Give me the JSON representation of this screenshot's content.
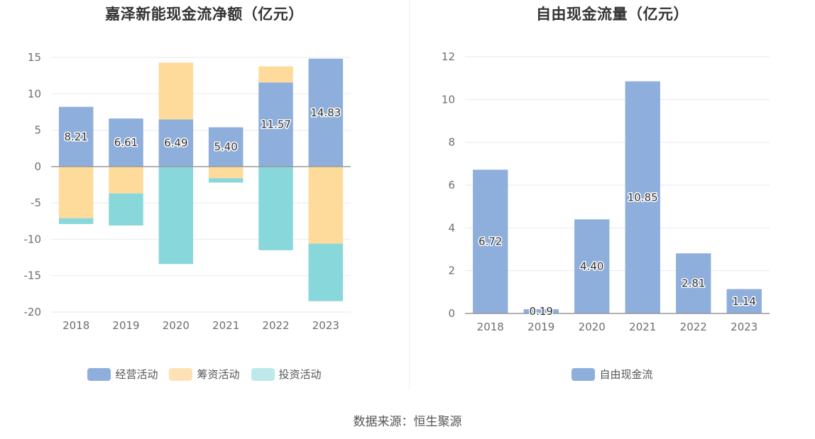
{
  "chart_data": [
    {
      "type": "bar",
      "stacked": true,
      "title": "嘉泽新能现金流净额（亿元）",
      "categories": [
        "2018",
        "2019",
        "2020",
        "2021",
        "2022",
        "2023"
      ],
      "series": [
        {
          "name": "经营活动",
          "color": "#8eaedc",
          "values": [
            8.21,
            6.61,
            6.49,
            5.4,
            11.57,
            14.83
          ],
          "labels": [
            "8.21",
            "6.61",
            "6.49",
            "5.40",
            "11.57",
            "14.83"
          ]
        },
        {
          "name": "筹资活动",
          "color": "#fedb9b",
          "values": [
            -7.1,
            -3.7,
            7.8,
            -1.6,
            2.2,
            -10.6
          ]
        },
        {
          "name": "投资活动",
          "color": "#88d7db",
          "values": [
            -0.8,
            -4.4,
            -13.4,
            -0.6,
            -11.5,
            -7.9
          ]
        }
      ],
      "yticks": [
        "15",
        "10",
        "5",
        "0",
        "-5",
        "-10",
        "-15",
        "-20"
      ],
      "ylim": [
        -20,
        15
      ],
      "grid": true,
      "legend_position": "bottom"
    },
    {
      "type": "bar",
      "title": "自由现金流量（亿元）",
      "categories": [
        "2018",
        "2019",
        "2020",
        "2021",
        "2022",
        "2023"
      ],
      "series": [
        {
          "name": "自由现金流",
          "color": "#8eaedc",
          "values": [
            6.72,
            0.19,
            4.4,
            10.85,
            2.81,
            1.14
          ],
          "labels": [
            "6.72",
            "0.19",
            "4.40",
            "10.85",
            "2.81",
            "1.14"
          ]
        }
      ],
      "yticks": [
        "12",
        "10",
        "8",
        "6",
        "4",
        "2",
        "0"
      ],
      "ylim": [
        0,
        12
      ],
      "grid": true,
      "legend_position": "bottom"
    }
  ],
  "legend_colors": {
    "经营活动": "#8eaedc",
    "筹资活动": "#fee2b6",
    "投资活动": "#bde9ec",
    "自由现金流": "#8eaedc"
  },
  "legend_labels": {
    "operating": "经营活动",
    "financing": "筹资活动",
    "investing": "投资活动",
    "fcf": "自由现金流"
  },
  "source": "数据来源：恒生聚源"
}
